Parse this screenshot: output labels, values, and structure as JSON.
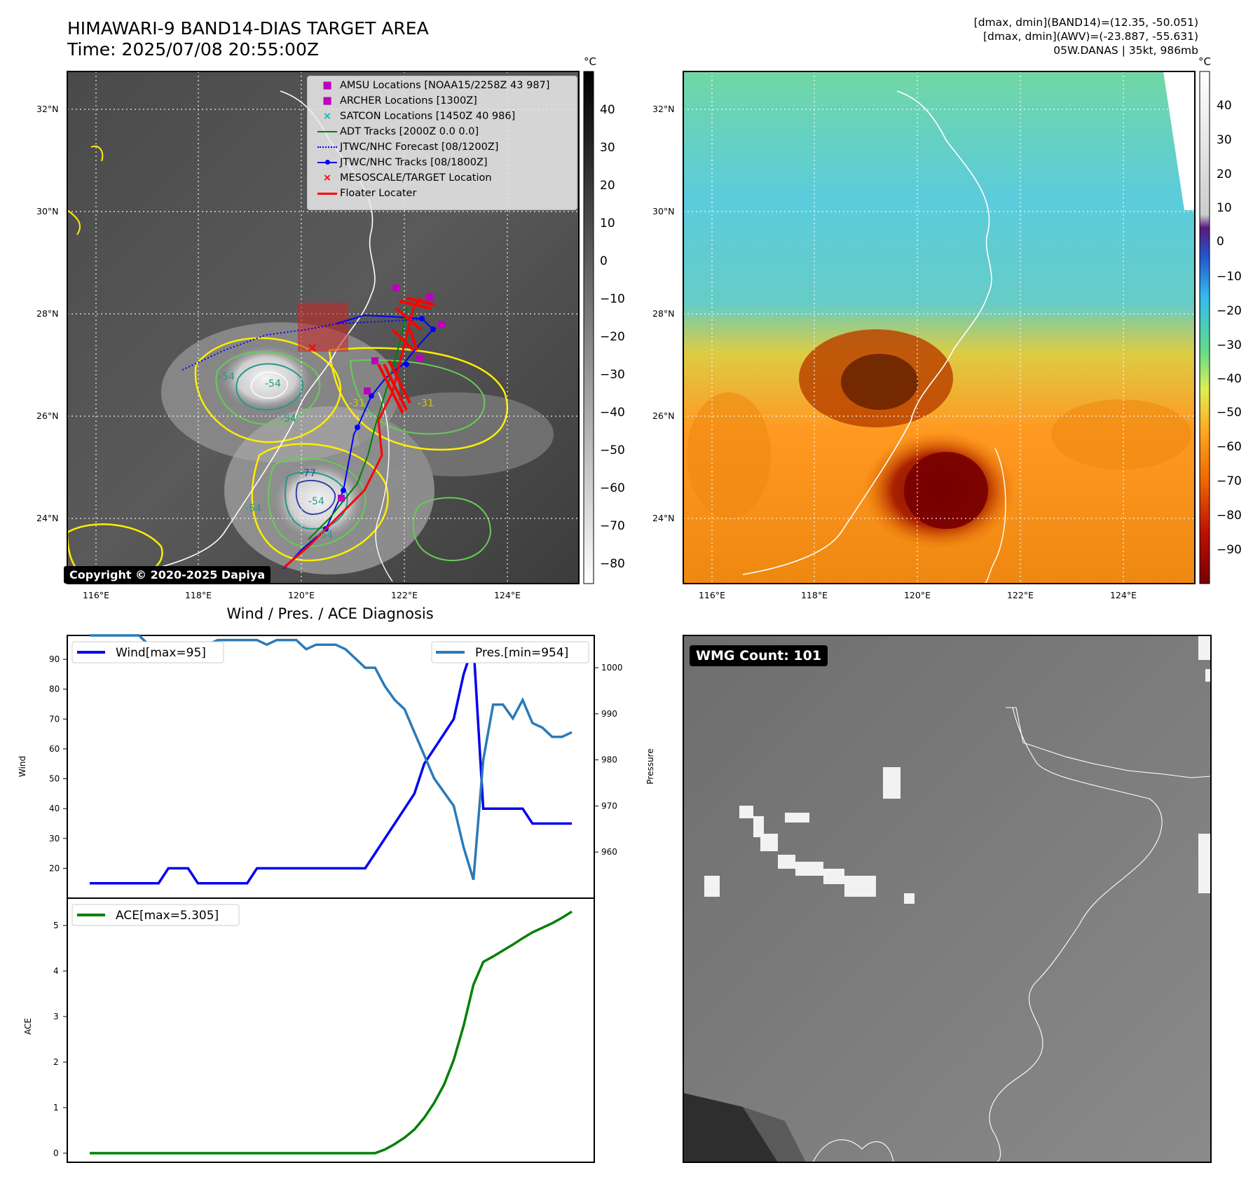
{
  "title": {
    "line1": "HIMAWARI-9 BAND14-DIAS TARGET AREA",
    "line2": "Time: 2025/07/08 20:55:00Z",
    "right1": "[dmax, dmin](BAND14)=(12.35, -50.051)",
    "right2": "[dmax, dmin](AWV)=(-23.887, -55.631)",
    "right3": "05W.DANAS | 35kt, 986mb"
  },
  "copyright": "Copyright © 2020-2025 Dapiya",
  "wmg_count": "WMG Count: 101",
  "colors": {
    "wind": "#0000ee",
    "pressure": "#2a7ab8",
    "ace": "#008000",
    "track_red": "#ff0000",
    "amsu": "#bb00bb",
    "satcon": "#00bbbb",
    "adt": "#008000",
    "jtwc": "#0000ff"
  },
  "legend": [
    {
      "label": "AMSU Locations [NOAA15/2258Z 43 987]",
      "icon": "magenta-square"
    },
    {
      "label": "ARCHER Locations [1300Z]",
      "icon": "magenta-square"
    },
    {
      "label": "SATCON Locations [1450Z 40 986]",
      "icon": "cyan-x"
    },
    {
      "label": "ADT Tracks [2000Z 0.0 0.0]",
      "icon": "green-line"
    },
    {
      "label": "JTWC/NHC Forecast [08/1200Z]",
      "icon": "blue-dotted-line"
    },
    {
      "label": "JTWC/NHC Tracks [08/1800Z]",
      "icon": "blue-line-dot"
    },
    {
      "label": "MESOSCALE/TARGET Location",
      "icon": "red-x"
    },
    {
      "label": "Floater Locater",
      "icon": "red-line"
    }
  ],
  "contour_labels": [
    "-54",
    "-54",
    "-31",
    "-31",
    "-54",
    "-54",
    "-54",
    "-54",
    "-77"
  ],
  "map": {
    "lon_ticks": [
      "116°E",
      "118°E",
      "120°E",
      "122°E",
      "124°E"
    ],
    "lat_ticks": [
      "32°N",
      "30°N",
      "28°N",
      "26°N",
      "24°N"
    ],
    "cbar1_unit": "°C",
    "cbar1_ticks": [
      "40",
      "30",
      "20",
      "10",
      "0",
      "−10",
      "−20",
      "−30",
      "−40",
      "−50",
      "−60",
      "−70",
      "−80"
    ],
    "cbar2_unit": "°C",
    "cbar2_ticks": [
      "40",
      "30",
      "20",
      "10",
      "0",
      "−10",
      "−20",
      "−30",
      "−40",
      "−50",
      "−60",
      "−70",
      "−80",
      "−90"
    ]
  },
  "chart_data": [
    {
      "type": "line",
      "title": "Wind / Pres. / ACE Diagnosis",
      "ylabel": "Wind",
      "ylabel_right": "Pressure",
      "ylim": [
        10,
        98
      ],
      "ylim_right": [
        950,
        1007
      ],
      "yticks": [
        20,
        30,
        40,
        50,
        60,
        70,
        80,
        90
      ],
      "yticks_right": [
        960,
        970,
        980,
        990,
        1000
      ],
      "series": [
        {
          "name": "Wind[max=95]",
          "axis": "left",
          "values": [
            15,
            15,
            15,
            15,
            15,
            15,
            15,
            15,
            20,
            20,
            20,
            15,
            15,
            15,
            15,
            15,
            15,
            20,
            20,
            20,
            20,
            20,
            20,
            20,
            20,
            20,
            20,
            20,
            20,
            25,
            30,
            35,
            40,
            45,
            55,
            60,
            65,
            70,
            85,
            95,
            40,
            40,
            40,
            40,
            40,
            35,
            35,
            35,
            35,
            35
          ]
        },
        {
          "name": "Pres.[min=954]",
          "axis": "right",
          "values": [
            1007,
            1007,
            1007,
            1007,
            1007,
            1007,
            1005,
            1005,
            1005,
            1005,
            1005,
            1005,
            1005,
            1006,
            1006,
            1006,
            1006,
            1006,
            1005,
            1006,
            1006,
            1006,
            1004,
            1005,
            1005,
            1005,
            1004,
            1002,
            1000,
            1000,
            996,
            993,
            991,
            986,
            981,
            976,
            973,
            970,
            961,
            954,
            980,
            992,
            992,
            989,
            993,
            988,
            987,
            985,
            985,
            986
          ]
        }
      ]
    },
    {
      "type": "line",
      "ylabel": "ACE",
      "ylim": [
        -0.2,
        5.6
      ],
      "yticks": [
        0,
        1,
        2,
        3,
        4,
        5
      ],
      "series": [
        {
          "name": "ACE[max=5.305]",
          "values": [
            0,
            0,
            0,
            0,
            0,
            0,
            0,
            0,
            0,
            0,
            0,
            0,
            0,
            0,
            0,
            0,
            0,
            0,
            0,
            0,
            0,
            0,
            0,
            0,
            0,
            0,
            0,
            0,
            0,
            0,
            0.08,
            0.2,
            0.34,
            0.52,
            0.78,
            1.1,
            1.5,
            2.05,
            2.8,
            3.7,
            4.2,
            4.32,
            4.45,
            4.58,
            4.72,
            4.85,
            4.95,
            5.05,
            5.17,
            5.305
          ]
        }
      ]
    }
  ]
}
